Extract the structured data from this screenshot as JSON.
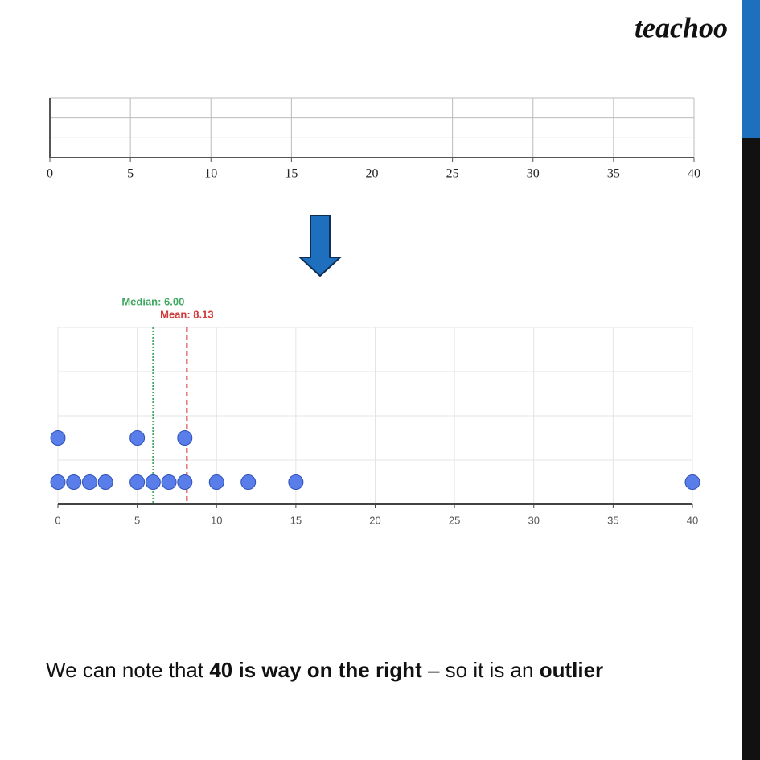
{
  "logo": "teachoo",
  "chart_data": [
    {
      "type": "dot",
      "xlim": [
        0,
        40
      ],
      "xticks": [
        0,
        5,
        10,
        15,
        20,
        25,
        30,
        35,
        40
      ],
      "grid": true
    },
    {
      "type": "dot",
      "x": [
        0,
        0,
        1,
        2,
        3,
        5,
        5,
        6,
        7,
        8,
        8,
        10,
        12,
        15,
        40
      ],
      "color": "#5a7ee9",
      "xlim": [
        0,
        40
      ],
      "xticks": [
        0,
        5,
        10,
        15,
        20,
        25,
        30,
        35,
        40
      ],
      "grid": true,
      "annotations": [
        {
          "label": "Median: 6.00",
          "value": 6,
          "color": "#3fa75f",
          "style": "dotted"
        },
        {
          "label": "Mean: 8.13",
          "value": 8.13,
          "color": "#d23a3a",
          "style": "dashed"
        }
      ]
    }
  ],
  "caption": [
    {
      "text": "We can note that ",
      "bold": false
    },
    {
      "text": "40 is way on the right",
      "bold": true
    },
    {
      "text": " – so it is an ",
      "bold": false
    },
    {
      "text": "outlier",
      "bold": true
    }
  ]
}
